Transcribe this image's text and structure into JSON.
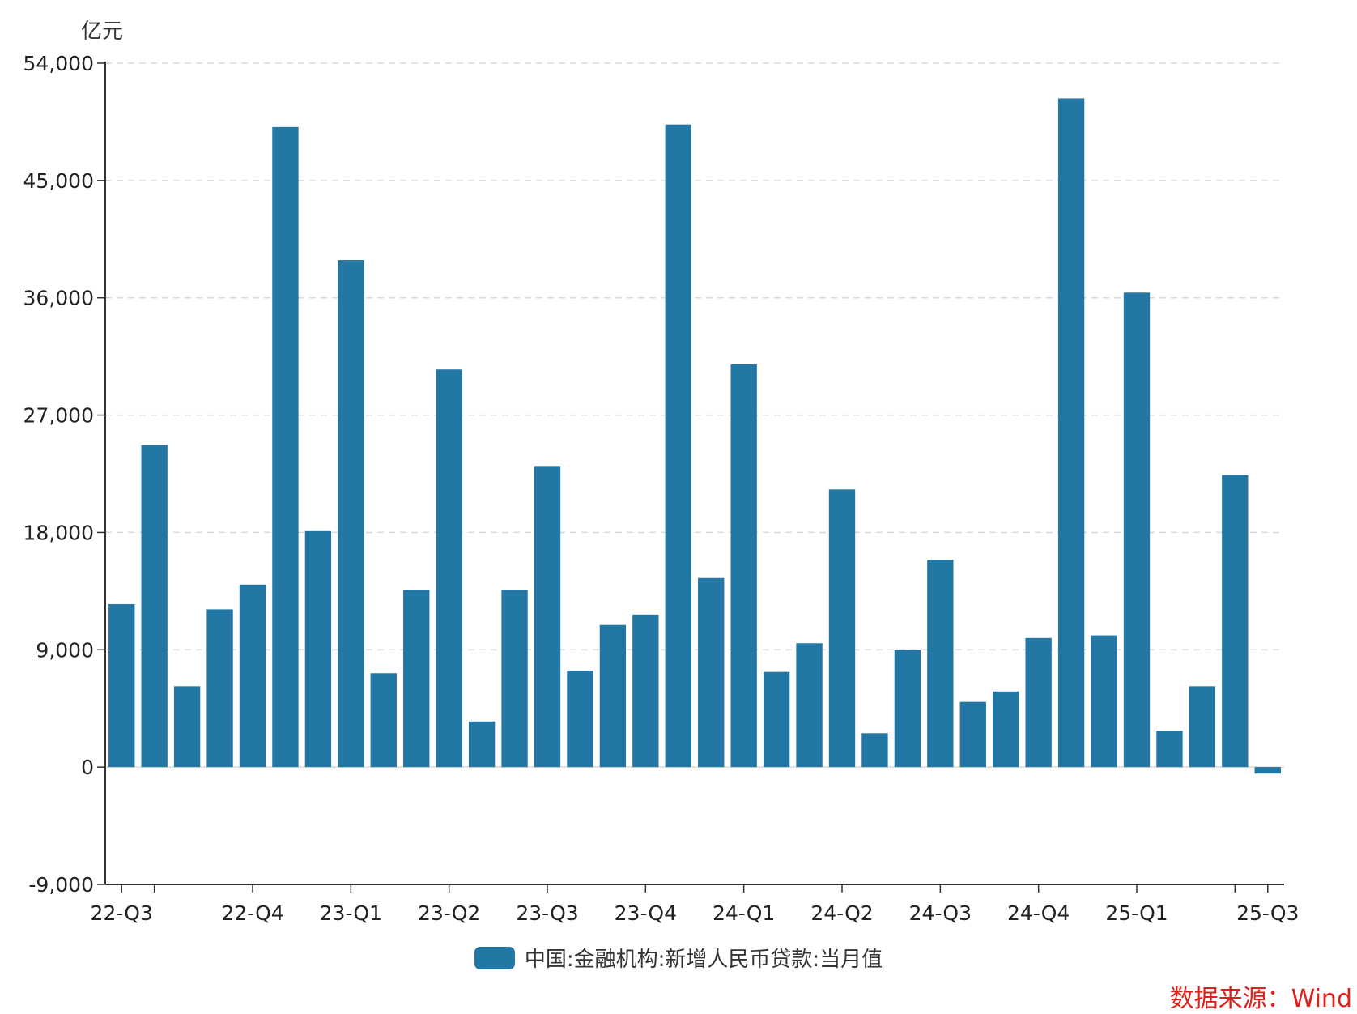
{
  "unit_label": "亿元",
  "source_label": "数据来源：Wind",
  "colors": {
    "bar": "#2377a4",
    "grid": "#d9d9d9",
    "axis": "#333333",
    "source": "#e0211b"
  },
  "chart_data": {
    "type": "bar",
    "ylim": [
      -9000,
      54000
    ],
    "yticks": [
      -9000,
      0,
      9000,
      18000,
      27000,
      36000,
      45000,
      54000
    ],
    "ytick_labels": [
      "-9,000",
      "0",
      "9,000",
      "18,000",
      "27,000",
      "36,000",
      "45,000",
      "54,000"
    ],
    "grid": true,
    "legend_position": "bottom-center",
    "series": [
      {
        "name": "中国:金融机构:新增人民币贷款:当月值",
        "values": [
          12500,
          24700,
          6200,
          12100,
          14000,
          49100,
          18100,
          38900,
          7200,
          13600,
          30500,
          3500,
          13600,
          23100,
          7400,
          10900,
          11700,
          49300,
          14500,
          30900,
          7300,
          9500,
          21300,
          2600,
          9000,
          15900,
          5000,
          5800,
          9900,
          51300,
          10100,
          36400,
          2800,
          6200,
          22400,
          -500
        ]
      }
    ],
    "x_axis_labels": [
      {
        "label": "22-Q3",
        "index": 0
      },
      {
        "label": "22-Q4",
        "index": 4
      },
      {
        "label": "23-Q1",
        "index": 7
      },
      {
        "label": "23-Q2",
        "index": 10
      },
      {
        "label": "23-Q3",
        "index": 13
      },
      {
        "label": "23-Q4",
        "index": 16
      },
      {
        "label": "24-Q1",
        "index": 19
      },
      {
        "label": "24-Q2",
        "index": 22
      },
      {
        "label": "24-Q3",
        "index": 25
      },
      {
        "label": "24-Q4",
        "index": 28
      },
      {
        "label": "25-Q1",
        "index": 31
      },
      {
        "label": "25-Q3",
        "index": 35
      }
    ]
  }
}
